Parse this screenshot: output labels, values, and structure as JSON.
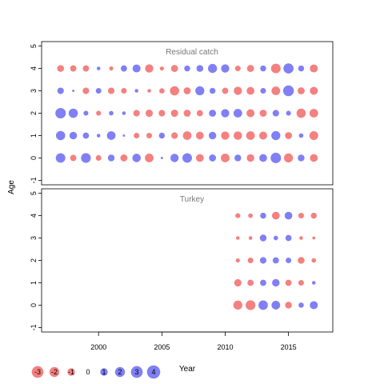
{
  "chart_data": {
    "type": "scatter",
    "subtype": "bubble residual plot",
    "ylabel": "Age",
    "xlabel": "Year",
    "xticks": [
      2000,
      2005,
      2010,
      2015
    ],
    "yticks": [
      -1,
      0,
      1,
      2,
      3,
      4,
      5
    ],
    "xlim": [
      1995.5,
      2018.5
    ],
    "ylim": [
      -1.2,
      5.2
    ],
    "colors": {
      "positive": "#4a4af0",
      "negative": "#f04a4a"
    },
    "panels": [
      {
        "title": "Residual catch",
        "years": [
          1997,
          1998,
          1999,
          2000,
          2001,
          2002,
          2003,
          2004,
          2005,
          2006,
          2007,
          2008,
          2009,
          2010,
          2011,
          2012,
          2013,
          2014,
          2015,
          2016,
          2017
        ],
        "residuals": {
          "0": [
            2.5,
            -1.0,
            2.6,
            -0.8,
            1.2,
            -1.3,
            1.9,
            -2.0,
            0.1,
            1.8,
            2.5,
            -1.6,
            1.3,
            -2.0,
            1.2,
            -1.5,
            1.6,
            3.0,
            -2.2,
            1.2,
            -1.6
          ],
          "1": [
            2.3,
            1.5,
            1.0,
            0.3,
            2.0,
            0.1,
            -0.8,
            -0.8,
            0.9,
            -1.1,
            -2.0,
            -1.6,
            1.5,
            -1.8,
            -1.9,
            -2.0,
            -1.7,
            2.2,
            -1.3,
            0.5,
            -2.1
          ],
          "2": [
            3.0,
            2.3,
            0.6,
            -0.6,
            0.5,
            0.3,
            -1.1,
            -1.4,
            -1.1,
            -1.4,
            -1.3,
            -1.0,
            1.3,
            1.8,
            2.0,
            -1.7,
            -1.3,
            1.1,
            0.6,
            -2.3,
            -2.0
          ],
          "3": [
            1.1,
            0.1,
            -1.1,
            0.8,
            -1.1,
            -0.8,
            0.3,
            -0.3,
            -0.7,
            -2.3,
            -1.3,
            2.2,
            0.9,
            -1.0,
            -1.8,
            -1.6,
            0.8,
            -2.0,
            3.2,
            -1.3,
            -1.7
          ],
          "4": [
            -1.2,
            -1.0,
            -1.0,
            0.3,
            -0.4,
            1.0,
            1.7,
            -1.8,
            -0.4,
            -1.3,
            0.9,
            1.2,
            2.2,
            1.8,
            -0.8,
            -1.3,
            0.9,
            -2.5,
            2.8,
            0.9,
            -1.7
          ]
        }
      },
      {
        "title": "Turkey",
        "years": [
          2011,
          2012,
          2013,
          2014,
          2015,
          2016,
          2017
        ],
        "residuals": {
          "0": [
            -2.2,
            -2.6,
            2.4,
            2.0,
            -1.2,
            0.7,
            1.7
          ],
          "1": [
            -1.4,
            -1.0,
            1.0,
            1.5,
            -1.0,
            -0.8,
            0.3
          ],
          "2": [
            -0.4,
            -0.8,
            1.1,
            1.0,
            0.8,
            -1.2,
            -0.5
          ],
          "3": [
            -0.3,
            -0.3,
            1.2,
            0.5,
            1.0,
            -0.3,
            -0.2
          ],
          "4": [
            -0.6,
            -0.5,
            0.9,
            -1.6,
            1.6,
            -0.8,
            -0.9
          ]
        }
      }
    ],
    "legend": {
      "values": [
        -3,
        -2,
        -1,
        0,
        1,
        2,
        3,
        4
      ],
      "labels": [
        "-3",
        "-2",
        "-1",
        "0",
        "1",
        "2",
        "3",
        "4"
      ],
      "position": "bottom-left"
    }
  }
}
